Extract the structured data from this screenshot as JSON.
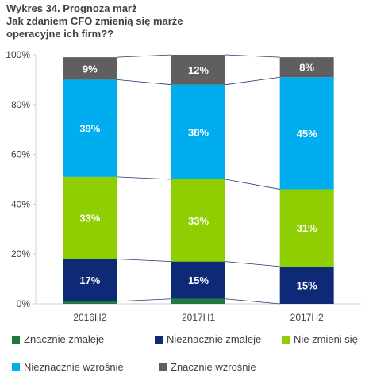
{
  "title_lines": [
    "Wykres 34. Prognoza marż",
    "Jak zdaniem CFO zmienią się marże",
    "operacyjne ich firm??"
  ],
  "chart_data": {
    "type": "bar",
    "stacked": true,
    "normalized": true,
    "categories": [
      "2016H2",
      "2017H1",
      "2017H2"
    ],
    "ylim": [
      0,
      100
    ],
    "yticks": [
      "0%",
      "20%",
      "40%",
      "60%",
      "80%",
      "100%"
    ],
    "series": [
      {
        "name": "Znacznie zmaleje",
        "color": "#1d7a3e",
        "values": [
          1,
          2,
          0
        ],
        "labels": [
          "",
          "",
          ""
        ]
      },
      {
        "name": "Nieznacznie zmaleje",
        "color": "#0e2a76",
        "values": [
          17,
          15,
          15
        ],
        "labels": [
          "17%",
          "15%",
          "15%"
        ]
      },
      {
        "name": "Nie zmieni się",
        "color": "#8fce00",
        "values": [
          33,
          33,
          31
        ],
        "labels": [
          "33%",
          "33%",
          "31%"
        ]
      },
      {
        "name": "Nieznacznie wzrośnie",
        "color": "#00aeef",
        "values": [
          39,
          38,
          45
        ],
        "labels": [
          "39%",
          "38%",
          "45%"
        ]
      },
      {
        "name": "Znacznie wzrośnie",
        "color": "#5f5f5f",
        "values": [
          9,
          12,
          8
        ],
        "labels": [
          "9%",
          "12%",
          "8%"
        ]
      }
    ]
  }
}
